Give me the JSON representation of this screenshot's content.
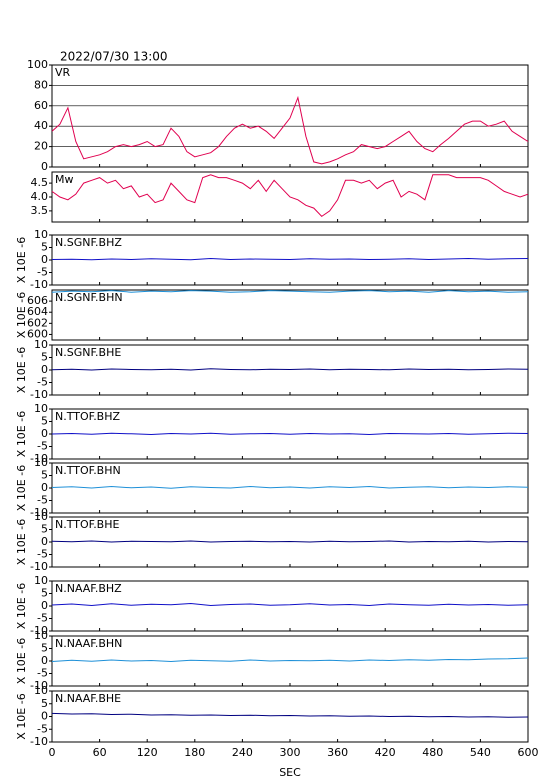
{
  "chart_data": [
    {
      "type": "line",
      "title": "2022/07/30 13:00",
      "label": "VR",
      "color": "#e0004f",
      "ylim": [
        0,
        100
      ],
      "yticks": [
        0,
        20,
        40,
        60,
        80,
        100
      ],
      "grid": true,
      "x": [
        0,
        10,
        20,
        30,
        40,
        50,
        60,
        70,
        80,
        90,
        100,
        110,
        120,
        130,
        140,
        150,
        160,
        170,
        180,
        190,
        200,
        210,
        220,
        230,
        240,
        250,
        260,
        270,
        280,
        290,
        300,
        310,
        320,
        330,
        340,
        350,
        360,
        370,
        380,
        390,
        400,
        410,
        420,
        430,
        440,
        450,
        460,
        470,
        480,
        490,
        500,
        510,
        520,
        530,
        540,
        550,
        560,
        570,
        580,
        590,
        600
      ],
      "values": [
        35,
        42,
        58,
        25,
        8,
        10,
        12,
        15,
        20,
        22,
        20,
        22,
        25,
        20,
        22,
        38,
        30,
        15,
        10,
        12,
        14,
        20,
        30,
        38,
        42,
        38,
        40,
        35,
        28,
        38,
        48,
        68,
        30,
        5,
        3,
        5,
        8,
        12,
        15,
        22,
        20,
        18,
        20,
        25,
        30,
        35,
        25,
        18,
        15,
        22,
        28,
        35,
        42,
        45,
        45,
        40,
        42,
        45,
        35,
        30,
        25
      ]
    },
    {
      "type": "line",
      "label": "Mw",
      "color": "#e0004f",
      "ylim": [
        3.1,
        4.9
      ],
      "yticks": [
        3.5,
        {
          "value": 4,
          "label": "4.0"
        },
        4.5
      ],
      "grid": false,
      "x": [
        0,
        10,
        20,
        30,
        40,
        50,
        60,
        70,
        80,
        90,
        100,
        110,
        120,
        130,
        140,
        150,
        160,
        170,
        180,
        190,
        200,
        210,
        220,
        230,
        240,
        250,
        260,
        270,
        280,
        290,
        300,
        310,
        320,
        330,
        340,
        350,
        360,
        370,
        380,
        390,
        400,
        410,
        420,
        430,
        440,
        450,
        460,
        470,
        480,
        490,
        500,
        510,
        520,
        530,
        540,
        550,
        560,
        570,
        580,
        590,
        600
      ],
      "values": [
        4.2,
        4.0,
        3.9,
        4.1,
        4.5,
        4.6,
        4.7,
        4.5,
        4.6,
        4.3,
        4.4,
        4.0,
        4.1,
        3.8,
        3.9,
        4.5,
        4.2,
        3.9,
        3.8,
        4.7,
        4.8,
        4.7,
        4.7,
        4.6,
        4.5,
        4.3,
        4.6,
        4.2,
        4.6,
        4.3,
        4.0,
        3.9,
        3.7,
        3.6,
        3.3,
        3.5,
        3.9,
        4.6,
        4.6,
        4.5,
        4.6,
        4.3,
        4.5,
        4.6,
        4.0,
        4.2,
        4.1,
        3.9,
        4.8,
        4.8,
        4.8,
        4.7,
        4.7,
        4.7,
        4.7,
        4.6,
        4.4,
        4.2,
        4.1,
        4.0,
        4.1
      ]
    },
    {
      "type": "line",
      "label": "N.SGNF.BHZ",
      "y_label": "X 10E -6",
      "color": "#1010c8",
      "ylim": [
        -10,
        10
      ],
      "yticks": [
        -10,
        -5,
        0,
        5,
        10
      ],
      "x": [
        0,
        25,
        50,
        75,
        100,
        125,
        150,
        175,
        200,
        225,
        250,
        275,
        300,
        325,
        350,
        375,
        400,
        425,
        450,
        475,
        500,
        525,
        550,
        575,
        600
      ],
      "values": [
        0.2,
        0.3,
        0.1,
        0.4,
        0.2,
        0.5,
        0.3,
        0.1,
        0.6,
        0.2,
        0.4,
        0.3,
        0.2,
        0.5,
        0.3,
        0.4,
        0.2,
        0.3,
        0.5,
        0.2,
        0.4,
        0.6,
        0.3,
        0.5,
        0.6
      ]
    },
    {
      "type": "line",
      "label": "N.SGNF.BHN",
      "y_label": "X 10E -6",
      "color": "#1e90d8",
      "ylim": [
        599,
        608
      ],
      "yticks": [
        600,
        602,
        604,
        606
      ],
      "x": [
        0,
        25,
        50,
        75,
        100,
        125,
        150,
        175,
        200,
        225,
        250,
        275,
        300,
        325,
        350,
        375,
        400,
        425,
        450,
        475,
        500,
        525,
        550,
        575,
        600
      ],
      "values": [
        607.6,
        607.8,
        607.7,
        607.9,
        607.6,
        607.8,
        607.7,
        607.9,
        607.8,
        607.6,
        607.7,
        607.9,
        607.8,
        607.7,
        607.6,
        607.8,
        607.9,
        607.7,
        607.8,
        607.6,
        607.9,
        607.7,
        607.8,
        607.6,
        607.7
      ]
    },
    {
      "type": "line",
      "label": "N.SGNF.BHE",
      "y_label": "X 10E -6",
      "color": "#000080",
      "ylim": [
        -10,
        10
      ],
      "yticks": [
        -10,
        -5,
        0,
        5,
        10
      ],
      "x": [
        0,
        25,
        50,
        75,
        100,
        125,
        150,
        175,
        200,
        225,
        250,
        275,
        300,
        325,
        350,
        375,
        400,
        425,
        450,
        475,
        500,
        525,
        550,
        575,
        600
      ],
      "values": [
        0.1,
        0.3,
        0.0,
        0.4,
        0.2,
        0.1,
        0.3,
        0.0,
        0.5,
        0.2,
        0.1,
        0.3,
        0.2,
        0.4,
        0.1,
        0.3,
        0.2,
        0.1,
        0.4,
        0.2,
        0.3,
        0.1,
        0.2,
        0.4,
        0.3
      ]
    },
    {
      "type": "line",
      "label": "N.TTOF.BHZ",
      "y_label": "X 10E -6",
      "color": "#1010c8",
      "ylim": [
        -10,
        10
      ],
      "yticks": [
        -10,
        -5,
        0,
        5,
        10
      ],
      "x": [
        0,
        25,
        50,
        75,
        100,
        125,
        150,
        175,
        200,
        225,
        250,
        275,
        300,
        325,
        350,
        375,
        400,
        425,
        450,
        475,
        500,
        525,
        550,
        575,
        600
      ],
      "values": [
        0.0,
        0.2,
        -0.1,
        0.3,
        0.1,
        -0.2,
        0.2,
        0.0,
        0.3,
        -0.1,
        0.1,
        0.2,
        -0.1,
        0.2,
        0.0,
        0.1,
        -0.2,
        0.2,
        0.1,
        0.0,
        0.2,
        -0.1,
        0.1,
        0.3,
        0.2
      ]
    },
    {
      "type": "line",
      "label": "N.TTOF.BHN",
      "y_label": "X 10E -6",
      "color": "#1e90d8",
      "ylim": [
        -10,
        10
      ],
      "yticks": [
        -10,
        -5,
        0,
        5,
        10
      ],
      "x": [
        0,
        25,
        50,
        75,
        100,
        125,
        150,
        175,
        200,
        225,
        250,
        275,
        300,
        325,
        350,
        375,
        400,
        425,
        450,
        475,
        500,
        525,
        550,
        575,
        600
      ],
      "values": [
        0.2,
        0.5,
        0.0,
        0.6,
        0.1,
        0.4,
        -0.1,
        0.5,
        0.2,
        0.0,
        0.6,
        0.1,
        0.4,
        0.0,
        0.5,
        0.2,
        0.6,
        0.0,
        0.3,
        0.5,
        0.1,
        0.4,
        0.2,
        0.5,
        0.3
      ]
    },
    {
      "type": "line",
      "label": "N.TTOF.BHE",
      "y_label": "X 10E -6",
      "color": "#000080",
      "ylim": [
        -10,
        10
      ],
      "yticks": [
        -10,
        -5,
        0,
        5,
        10
      ],
      "x": [
        0,
        25,
        50,
        75,
        100,
        125,
        150,
        175,
        200,
        225,
        250,
        275,
        300,
        325,
        350,
        375,
        400,
        425,
        450,
        475,
        500,
        525,
        550,
        575,
        600
      ],
      "values": [
        0.3,
        0.1,
        0.4,
        0.0,
        0.3,
        0.2,
        0.1,
        0.4,
        0.0,
        0.2,
        0.3,
        0.1,
        0.2,
        0.0,
        0.3,
        0.1,
        0.2,
        0.4,
        0.0,
        0.2,
        0.1,
        0.3,
        0.0,
        0.2,
        0.1
      ]
    },
    {
      "type": "line",
      "label": "N.NAAF.BHZ",
      "y_label": "X 10E -6",
      "color": "#1010c8",
      "ylim": [
        -10,
        10
      ],
      "yticks": [
        -10,
        -5,
        0,
        5,
        10
      ],
      "x": [
        0,
        25,
        50,
        75,
        100,
        125,
        150,
        175,
        200,
        225,
        250,
        275,
        300,
        325,
        350,
        375,
        400,
        425,
        450,
        475,
        500,
        525,
        550,
        575,
        600
      ],
      "values": [
        0.4,
        0.8,
        0.2,
        0.9,
        0.3,
        0.7,
        0.5,
        1.0,
        0.2,
        0.6,
        0.8,
        0.3,
        0.5,
        0.9,
        0.4,
        0.6,
        0.2,
        0.8,
        0.5,
        0.3,
        0.7,
        0.4,
        0.6,
        0.3,
        0.5
      ]
    },
    {
      "type": "line",
      "label": "N.NAAF.BHN",
      "y_label": "X 10E -6",
      "color": "#1e90d8",
      "ylim": [
        -10,
        10
      ],
      "yticks": [
        -10,
        -5,
        0,
        5,
        10
      ],
      "x": [
        0,
        25,
        50,
        75,
        100,
        125,
        150,
        175,
        200,
        225,
        250,
        275,
        300,
        325,
        350,
        375,
        400,
        425,
        450,
        475,
        500,
        525,
        550,
        575,
        600
      ],
      "values": [
        -0.2,
        0.3,
        -0.1,
        0.4,
        0.0,
        0.2,
        -0.2,
        0.3,
        0.1,
        -0.1,
        0.4,
        0.0,
        0.2,
        0.1,
        0.3,
        0.0,
        0.4,
        0.2,
        0.5,
        0.3,
        0.6,
        0.5,
        0.8,
        0.9,
        1.2
      ]
    },
    {
      "type": "line",
      "label": "N.NAAF.BHE",
      "y_label": "X 10E -6",
      "color": "#000080",
      "ylim": [
        -10,
        10
      ],
      "yticks": [
        -10,
        -5,
        0,
        5,
        10
      ],
      "x": [
        0,
        25,
        50,
        75,
        100,
        125,
        150,
        175,
        200,
        225,
        250,
        275,
        300,
        325,
        350,
        375,
        400,
        425,
        450,
        475,
        500,
        525,
        550,
        575,
        600
      ],
      "values": [
        1.2,
        1.0,
        1.1,
        0.8,
        0.9,
        0.6,
        0.7,
        0.5,
        0.6,
        0.4,
        0.5,
        0.3,
        0.4,
        0.2,
        0.3,
        0.1,
        0.2,
        0.0,
        0.1,
        -0.1,
        0.0,
        -0.2,
        -0.1,
        -0.3,
        -0.2
      ],
      "xlim": [
        0,
        600
      ],
      "xticks": [
        0,
        60,
        120,
        180,
        240,
        300,
        360,
        420,
        480,
        540,
        600
      ],
      "x_label": "SEC"
    }
  ]
}
